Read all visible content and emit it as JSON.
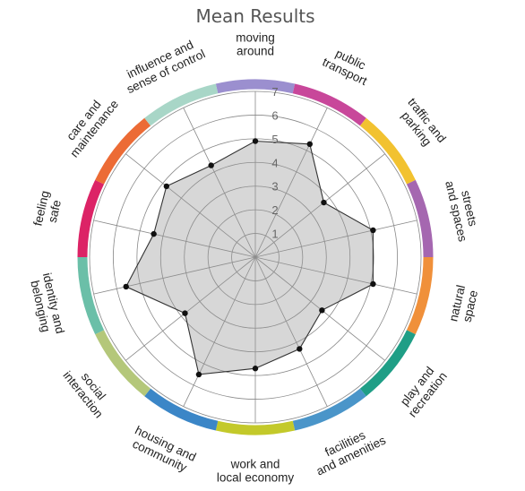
{
  "chart_data": {
    "type": "radar",
    "title": "Mean Results",
    "rmin": 0,
    "rmax": 7,
    "r_ticks": [
      "1",
      "2",
      "3",
      "4",
      "5",
      "6",
      "7"
    ],
    "grid": true,
    "categories": [
      {
        "label": [
          "moving",
          "around"
        ],
        "color": "#9b8fcf"
      },
      {
        "label": [
          "public",
          "transport"
        ],
        "color": "#c8479a"
      },
      {
        "label": [
          "traffic and",
          "parking"
        ],
        "color": "#f2c230"
      },
      {
        "label": [
          "streets",
          "and spaces"
        ],
        "color": "#a567b0"
      },
      {
        "label": [
          "natural",
          "space"
        ],
        "color": "#f0903a"
      },
      {
        "label": [
          "play and",
          "recreation"
        ],
        "color": "#1f9e86"
      },
      {
        "label": [
          "facilities",
          "and amenities"
        ],
        "color": "#4a95c9"
      },
      {
        "label": [
          "work and",
          "local economy"
        ],
        "color": "#c3c92a"
      },
      {
        "label": [
          "housing and",
          "community"
        ],
        "color": "#3b86c7"
      },
      {
        "label": [
          "social",
          "interaction"
        ],
        "color": "#b4c77a"
      },
      {
        "label": [
          "identity and",
          "belonging"
        ],
        "color": "#6bbfa8"
      },
      {
        "label": [
          "feeling",
          "safe"
        ],
        "color": "#dc2366"
      },
      {
        "label": [
          "care and",
          "maintenance"
        ],
        "color": "#ec6b35"
      },
      {
        "label": [
          "influence and",
          "sense of control"
        ],
        "color": "#a8d6c7"
      }
    ],
    "series": [
      {
        "values": [
          4.9,
          5.3,
          3.7,
          5.1,
          5.1,
          3.6,
          4.3,
          4.7,
          5.5,
          3.8,
          5.6,
          4.4,
          4.8,
          4.3
        ]
      }
    ]
  }
}
